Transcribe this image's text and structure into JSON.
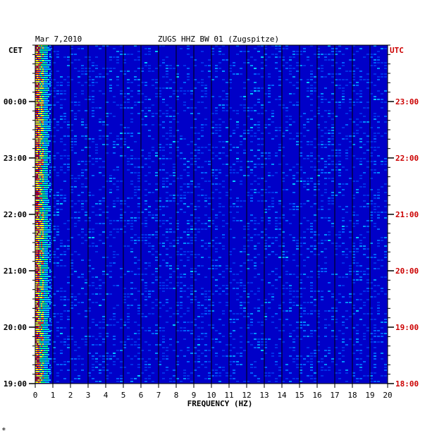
{
  "chart_data": {
    "type": "heatmap",
    "date_label": "Mar 7,2010",
    "title": "ZUGS HHZ BW 01 (Zugspitze)",
    "xlabel": "FREQUENCY (HZ)",
    "xlim": [
      0,
      20
    ],
    "x_ticks": [
      "0",
      "1",
      "2",
      "3",
      "4",
      "5",
      "6",
      "7",
      "8",
      "9",
      "10",
      "11",
      "12",
      "13",
      "14",
      "15",
      "16",
      "17",
      "18",
      "19",
      "20"
    ],
    "left_axis_label": "CET",
    "right_axis_label": "UTC",
    "left_ticks": [
      "00:00",
      "23:00",
      "22:00",
      "21:00",
      "20:00",
      "19:00"
    ],
    "right_ticks": [
      "23:00",
      "22:00",
      "21:00",
      "20:00",
      "19:00",
      "18:00"
    ],
    "footer_mark": "*",
    "colors": {
      "background": "#0000c8",
      "grid": "#000000",
      "utc": "#cc0000",
      "low_band": [
        "#00c8ff",
        "#00ff80",
        "#ffff00",
        "#ff6000",
        "#c80000"
      ]
    }
  }
}
